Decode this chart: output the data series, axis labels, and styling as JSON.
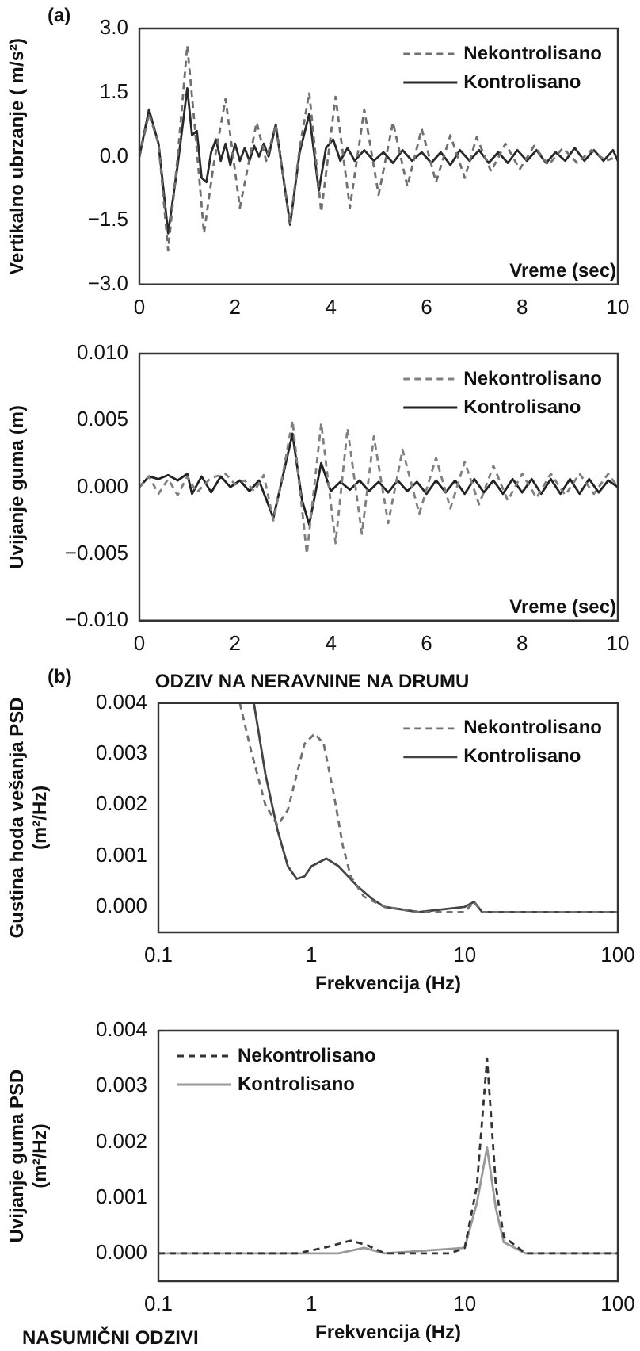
{
  "chart_data": [
    {
      "type": "line",
      "xlabel": "Vreme (sec)",
      "ylabel": "Vertikalno ubrzanje ( m/s²)",
      "annotations": [
        "(a)"
      ],
      "xlim": [
        0,
        10
      ],
      "xticks": [
        0,
        2,
        4,
        6,
        8,
        10
      ],
      "ylim": [
        -3,
        3
      ],
      "yticks": [
        {
          "value": -3,
          "label": "−3.0"
        },
        {
          "value": -1.5,
          "label": "−1.5"
        },
        {
          "value": 0,
          "label": "0.0"
        },
        {
          "value": 1.5,
          "label": "1.5"
        },
        {
          "value": 3,
          "label": "3.0"
        }
      ],
      "grid": false,
      "legend": "top right",
      "series": [
        {
          "name": "Nekontrolisano",
          "color": "#707070",
          "line_style": "dashed",
          "x": [
            0,
            0.2,
            0.4,
            0.6,
            0.8,
            1.0,
            1.15,
            1.35,
            1.55,
            1.8,
            2.1,
            2.45,
            2.65,
            2.85,
            3.15,
            3.35,
            3.55,
            3.8,
            4.1,
            4.4,
            4.7,
            5.0,
            5.3,
            5.6,
            5.9,
            6.2,
            6.5,
            6.8,
            7.05,
            7.35,
            7.65,
            7.95,
            8.25,
            8.55,
            8.85,
            9.15,
            9.45,
            9.75,
            10
          ],
          "values": [
            0,
            1.0,
            0.3,
            -2.2,
            0,
            2.6,
            0.8,
            -1.8,
            -0.2,
            1.35,
            -1.2,
            0.8,
            -0.1,
            0.75,
            -1.6,
            0.2,
            1.5,
            -1.3,
            1.4,
            -1.2,
            1.1,
            -0.9,
            0.8,
            -0.7,
            0.65,
            -0.6,
            0.5,
            -0.5,
            0.45,
            -0.35,
            0.3,
            -0.3,
            0.25,
            -0.2,
            0.2,
            -0.15,
            0.15,
            -0.1,
            0
          ]
        },
        {
          "name": "Kontrolisano",
          "color": "#2a2a2a",
          "line_style": "solid",
          "x": [
            0,
            0.2,
            0.4,
            0.6,
            0.8,
            1.0,
            1.1,
            1.2,
            1.3,
            1.4,
            1.5,
            1.6,
            1.7,
            1.8,
            1.9,
            2.0,
            2.1,
            2.2,
            2.3,
            2.4,
            2.5,
            2.6,
            2.7,
            2.85,
            3.15,
            3.35,
            3.55,
            3.75,
            3.9,
            4.05,
            4.2,
            4.35,
            4.5,
            4.7,
            4.9,
            5.1,
            5.3,
            5.5,
            5.7,
            5.9,
            6.1,
            6.3,
            6.5,
            6.7,
            6.9,
            7.1,
            7.3,
            7.5,
            7.7,
            7.9,
            8.1,
            8.3,
            8.5,
            8.7,
            8.9,
            9.1,
            9.3,
            9.5,
            9.7,
            9.9,
            10
          ],
          "values": [
            0,
            1.1,
            0.3,
            -1.8,
            -0.2,
            1.6,
            0.5,
            0.6,
            -0.5,
            -0.6,
            0.1,
            0.4,
            -0.1,
            0.3,
            -0.2,
            0.3,
            -0.1,
            0.2,
            -0.1,
            0.25,
            0,
            0.3,
            0,
            0.75,
            -1.6,
            0.1,
            1.0,
            -0.8,
            0.2,
            0.4,
            -0.1,
            0.2,
            -0.1,
            0.15,
            -0.1,
            0.1,
            -0.15,
            0.15,
            -0.1,
            0.1,
            -0.15,
            0.1,
            -0.2,
            0.15,
            -0.1,
            0.15,
            -0.15,
            0.1,
            -0.15,
            0.15,
            -0.1,
            0.15,
            -0.15,
            0.1,
            -0.1,
            0.2,
            -0.1,
            0.15,
            -0.1,
            0.15,
            -0.1
          ]
        }
      ]
    },
    {
      "type": "line",
      "xlabel": "Vreme (sec)",
      "ylabel": "Uvijanje guma (m)",
      "xlim": [
        0,
        10
      ],
      "xticks": [
        0,
        2,
        4,
        6,
        8,
        10
      ],
      "ylim": [
        -0.01,
        0.01
      ],
      "yticks": [
        {
          "value": -0.01,
          "label": "−0.010"
        },
        {
          "value": -0.005,
          "label": "−0.005"
        },
        {
          "value": 0,
          "label": "0.000"
        },
        {
          "value": 0.005,
          "label": "0.005"
        },
        {
          "value": 0.01,
          "label": "0.010"
        }
      ],
      "grid": false,
      "legend": "top right",
      "series": [
        {
          "name": "Nekontrolisano",
          "color": "#808080",
          "line_style": "dashed",
          "x": [
            0,
            0.2,
            0.4,
            0.6,
            0.8,
            1.0,
            1.2,
            1.5,
            1.8,
            2.0,
            2.2,
            2.4,
            2.6,
            2.8,
            3.0,
            3.2,
            3.5,
            3.8,
            4.1,
            4.35,
            4.65,
            4.9,
            5.2,
            5.5,
            5.85,
            6.2,
            6.5,
            6.8,
            7.1,
            7.4,
            7.7,
            8.0,
            8.3,
            8.6,
            8.9,
            9.2,
            9.5,
            9.8,
            10
          ],
          "values": [
            0,
            0.0008,
            -0.0005,
            0.0006,
            -0.0006,
            0.0008,
            -0.0004,
            0.0007,
            0.001,
            0.0002,
            0.0005,
            -0.0003,
            0.0009,
            -0.0025,
            0.001,
            0.005,
            -0.005,
            0.0048,
            -0.0042,
            0.0044,
            -0.0035,
            0.0038,
            -0.0027,
            0.0028,
            -0.002,
            0.0022,
            -0.0016,
            0.0019,
            -0.0013,
            0.0016,
            -0.001,
            0.001,
            -0.0008,
            0.001,
            -0.0006,
            0.001,
            -0.0005,
            0.001,
            0
          ]
        },
        {
          "name": "Kontrolisano",
          "color": "#222222",
          "line_style": "solid",
          "x": [
            0,
            0.2,
            0.4,
            0.6,
            0.8,
            1.0,
            1.1,
            1.3,
            1.5,
            1.7,
            1.9,
            2.1,
            2.3,
            2.5,
            2.8,
            3.2,
            3.4,
            3.55,
            3.8,
            4.0,
            4.2,
            4.4,
            4.6,
            4.8,
            5.0,
            5.2,
            5.4,
            5.6,
            5.8,
            6.0,
            6.2,
            6.4,
            6.6,
            6.8,
            7.0,
            7.2,
            7.4,
            7.6,
            7.8,
            8.0,
            8.2,
            8.4,
            8.6,
            8.8,
            9.0,
            9.2,
            9.4,
            9.6,
            9.8,
            10
          ],
          "values": [
            0,
            0.0008,
            0.0006,
            0.0009,
            0.0005,
            0.001,
            -0.0005,
            0.0008,
            -0.0004,
            0.0008,
            0,
            0.0005,
            -0.0003,
            0.0005,
            -0.0023,
            0.004,
            -0.001,
            -0.0028,
            0.0018,
            -0.0003,
            0.0004,
            -0.0002,
            0.0005,
            -0.0003,
            0.0004,
            -0.0004,
            0.0005,
            -0.0003,
            0.0004,
            -0.0005,
            0.0005,
            -0.0004,
            0.0005,
            -0.0005,
            0.0006,
            -0.0004,
            0.0005,
            -0.0005,
            0.0006,
            -0.0004,
            0.0006,
            -0.0005,
            0.0006,
            -0.0005,
            0.0006,
            -0.0005,
            0.0006,
            -0.0004,
            0.0005,
            0
          ]
        }
      ]
    },
    {
      "type": "line",
      "title": "ODZIV NA NERAVNINE NA DRUMU",
      "xlabel": "Frekvencija (Hz)",
      "ylabel": "Gustina hoda vešanja PSD\n(m²/Hz)",
      "annotations": [
        "(b)"
      ],
      "log": "x",
      "xlim": [
        0.1,
        100
      ],
      "xticks": [
        0.1,
        1,
        10,
        100
      ],
      "ylim": [
        -0.0005,
        0.004
      ],
      "yticks": [
        {
          "value": 0,
          "label": "0.000"
        },
        {
          "value": 0.001,
          "label": "0.001"
        },
        {
          "value": 0.002,
          "label": "0.002"
        },
        {
          "value": 0.003,
          "label": "0.003"
        },
        {
          "value": 0.004,
          "label": "0.004"
        }
      ],
      "grid": false,
      "legend": "top right",
      "series": [
        {
          "name": "Nekontrolisano",
          "color": "#707070",
          "line_style": "dashed",
          "x": [
            0.34,
            0.4,
            0.5,
            0.6,
            0.7,
            0.8,
            0.9,
            1.05,
            1.2,
            1.4,
            1.6,
            1.8,
            2.2,
            3,
            5,
            10,
            11.5,
            13,
            30,
            100
          ],
          "values": [
            0.004,
            0.0031,
            0.002,
            0.0016,
            0.0019,
            0.0026,
            0.0032,
            0.0034,
            0.0032,
            0.0022,
            0.0012,
            0.0006,
            0.0002,
            0,
            -0.0001,
            -0.0001,
            0.0001,
            -0.0001,
            -0.0001,
            -0.0001
          ]
        },
        {
          "name": "Kontrolisano",
          "color": "#444444",
          "line_style": "solid",
          "x": [
            0.42,
            0.5,
            0.6,
            0.7,
            0.8,
            0.9,
            1.0,
            1.25,
            1.5,
            2,
            2.5,
            3,
            5,
            10,
            11.5,
            13,
            30,
            100
          ],
          "values": [
            0.004,
            0.0026,
            0.0015,
            0.0008,
            0.00055,
            0.0006,
            0.0008,
            0.00095,
            0.0008,
            0.0004,
            0.00015,
            0,
            -0.0001,
            0,
            0.0001,
            -0.0001,
            -0.0001,
            -0.0001
          ]
        }
      ]
    },
    {
      "type": "line",
      "xlabel": "Frekvencija (Hz)",
      "ylabel": "Uvijanje guma PSD\n(m²/Hz)",
      "annotations": [
        "NASUMIČNI ODZIVI"
      ],
      "log": "x",
      "xlim": [
        0.1,
        100
      ],
      "xticks": [
        0.1,
        1,
        10,
        100
      ],
      "ylim": [
        -0.0005,
        0.004
      ],
      "yticks": [
        {
          "value": 0,
          "label": "0.000"
        },
        {
          "value": 0.001,
          "label": "0.001"
        },
        {
          "value": 0.002,
          "label": "0.002"
        },
        {
          "value": 0.003,
          "label": "0.003"
        },
        {
          "value": 0.004,
          "label": "0.004"
        }
      ],
      "grid": false,
      "legend": "top left",
      "series": [
        {
          "name": "Nekontrolisano",
          "color": "#333333",
          "line_style": "dashed",
          "x": [
            0.1,
            0.5,
            0.8,
            1.2,
            1.8,
            2.3,
            3,
            8,
            10,
            12,
            14,
            16,
            18,
            25,
            100
          ],
          "values": [
            0,
            0,
            0,
            0.0001,
            0.00023,
            0.00015,
            0,
            0,
            0.0001,
            0.0012,
            0.0035,
            0.0012,
            0.0003,
            0,
            0
          ]
        },
        {
          "name": "Kontrolisano",
          "color": "#999999",
          "line_style": "solid",
          "x": [
            0.1,
            1.5,
            2.2,
            3,
            10,
            12,
            14,
            16,
            18,
            25,
            100
          ],
          "values": [
            0,
            0,
            0.0001,
            0,
            0.0001,
            0.0009,
            0.0019,
            0.0008,
            0.0002,
            0,
            0
          ]
        }
      ]
    }
  ]
}
